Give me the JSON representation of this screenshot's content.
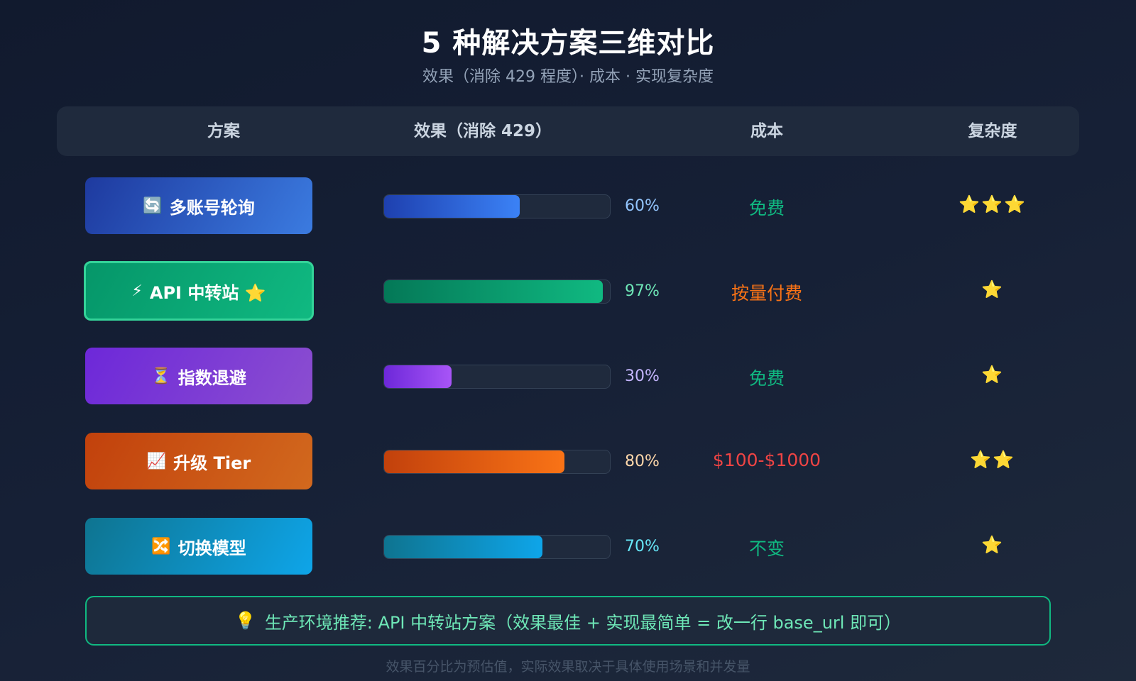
{
  "header": {
    "title": "5 种解决方案三维对比",
    "subtitle": "效果（消除 429 程度）· 成本 · 实现复杂度"
  },
  "table": {
    "columns": [
      "方案",
      "效果（消除 429）",
      "成本",
      "复杂度"
    ],
    "rows": [
      {
        "icon": "🔄",
        "icon_name": "refresh-icon",
        "label": "多账号轮询",
        "effect": 60,
        "effect_label": "60%",
        "cost": "免费",
        "cost_color": "#10b981",
        "complexity": "⭐⭐⭐",
        "complexity_level": 3,
        "plan_gradient": [
          "#1e3a9f",
          "#3b7be0"
        ],
        "bar_gradient": [
          "#1e40af",
          "#3b82f6"
        ],
        "pct_color": "#93c5fd"
      },
      {
        "icon": "⚡",
        "icon_name": "lightning-icon",
        "label": "API 中转站 ⭐",
        "effect": 97,
        "effect_label": "97%",
        "cost": "按量付费",
        "cost_color": "#f97316",
        "complexity": "⭐",
        "complexity_level": 1,
        "plan_gradient": [
          "#059669",
          "#10b981"
        ],
        "bar_gradient": [
          "#047857",
          "#10b981"
        ],
        "pct_color": "#6ee7b7",
        "highlight": true
      },
      {
        "icon": "⏳",
        "icon_name": "hourglass-icon",
        "label": "指数退避",
        "effect": 30,
        "effect_label": "30%",
        "cost": "免费",
        "cost_color": "#10b981",
        "complexity": "⭐",
        "complexity_level": 1,
        "plan_gradient": [
          "#6d28d9",
          "#8b4ed0"
        ],
        "bar_gradient": [
          "#6d28d9",
          "#a855f7"
        ],
        "pct_color": "#c4b5fd"
      },
      {
        "icon": "📈",
        "icon_name": "chart-up-icon",
        "label": "升级 Tier",
        "effect": 80,
        "effect_label": "80%",
        "cost": "$100-$1000",
        "cost_color": "#ef4444",
        "complexity": "⭐⭐",
        "complexity_level": 2,
        "plan_gradient": [
          "#c2410c",
          "#d2691e"
        ],
        "bar_gradient": [
          "#c2410c",
          "#f97316"
        ],
        "pct_color": "#fed7aa"
      },
      {
        "icon": "🔀",
        "icon_name": "shuffle-icon",
        "label": "切换模型",
        "effect": 70,
        "effect_label": "70%",
        "cost": "不变",
        "cost_color": "#10b981",
        "complexity": "⭐",
        "complexity_level": 1,
        "plan_gradient": [
          "#0e7490",
          "#0ea5e9"
        ],
        "bar_gradient": [
          "#0e7490",
          "#0ea5e9"
        ],
        "pct_color": "#67e8f9"
      }
    ]
  },
  "recommend": {
    "icon": "💡",
    "text": "生产环境推荐: API 中转站方案（效果最佳 + 实现最简单 = 改一行 base_url 即可）"
  },
  "footnote": "效果百分比为预估值，实际效果取决于具体使用场景和并发量",
  "chart_data": {
    "type": "bar",
    "title": "5 种解决方案三维对比",
    "subtitle": "效果（消除 429 程度）· 成本 · 实现复杂度",
    "orientation": "horizontal",
    "categories": [
      "多账号轮询",
      "API 中转站",
      "指数退避",
      "升级 Tier",
      "切换模型"
    ],
    "series": [
      {
        "name": "效果（消除 429）",
        "unit": "%",
        "values": [
          60,
          97,
          30,
          80,
          70
        ]
      }
    ],
    "extra_columns": {
      "成本": [
        "免费",
        "按量付费",
        "免费",
        "$100-$1000",
        "不变"
      ],
      "复杂度 (stars)": [
        3,
        1,
        1,
        2,
        1
      ]
    },
    "xlim": [
      0,
      100
    ],
    "grid": false,
    "legend": "none"
  }
}
